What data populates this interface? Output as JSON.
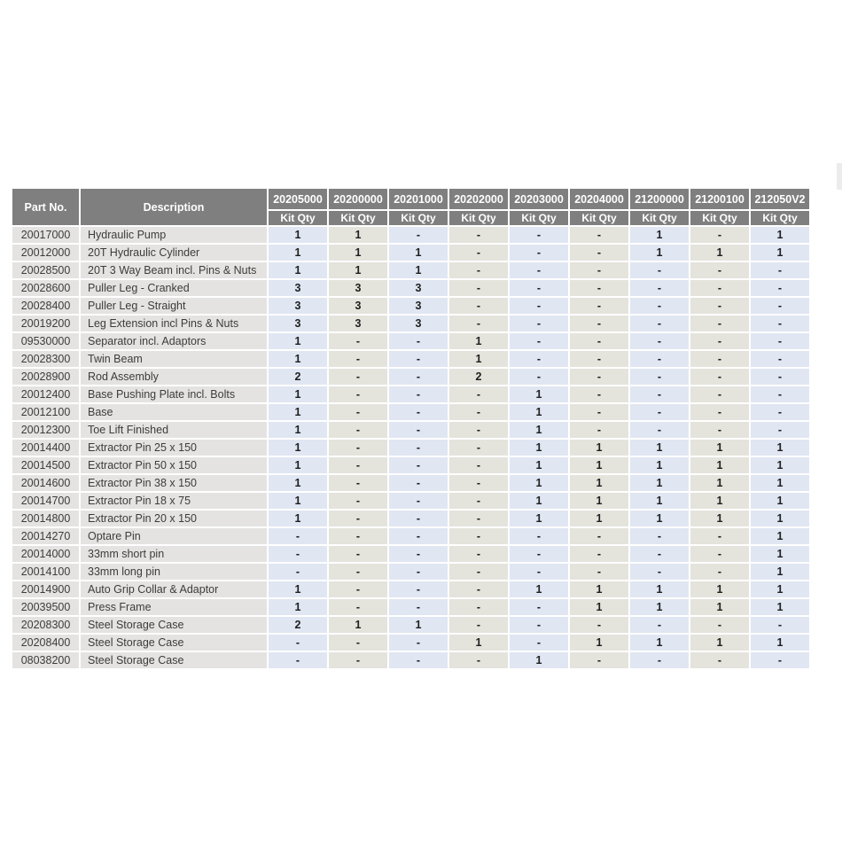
{
  "table": {
    "header": {
      "part_no_label": "Part No.",
      "description_label": "Description",
      "kit_qty_label": "Kit Qty",
      "kit_columns": [
        "20205000",
        "20200000",
        "20201000",
        "20202000",
        "20203000",
        "20204000",
        "21200000",
        "21200100",
        "212050V2"
      ]
    },
    "rows": [
      {
        "part_no": "20017000",
        "description": "Hydraulic Pump",
        "quantities": [
          "1",
          "1",
          "-",
          "-",
          "-",
          "-",
          "1",
          "-",
          "1"
        ]
      },
      {
        "part_no": "20012000",
        "description": "20T Hydraulic Cylinder",
        "quantities": [
          "1",
          "1",
          "1",
          "-",
          "-",
          "-",
          "1",
          "1",
          "1"
        ]
      },
      {
        "part_no": "20028500",
        "description": "20T 3 Way Beam incl. Pins & Nuts",
        "quantities": [
          "1",
          "1",
          "1",
          "-",
          "-",
          "-",
          "-",
          "-",
          "-"
        ]
      },
      {
        "part_no": "20028600",
        "description": "Puller Leg - Cranked",
        "quantities": [
          "3",
          "3",
          "3",
          "-",
          "-",
          "-",
          "-",
          "-",
          "-"
        ]
      },
      {
        "part_no": "20028400",
        "description": "Puller Leg - Straight",
        "quantities": [
          "3",
          "3",
          "3",
          "-",
          "-",
          "-",
          "-",
          "-",
          "-"
        ]
      },
      {
        "part_no": "20019200",
        "description": "Leg Extension incl Pins & Nuts",
        "quantities": [
          "3",
          "3",
          "3",
          "-",
          "-",
          "-",
          "-",
          "-",
          "-"
        ]
      },
      {
        "part_no": "09530000",
        "description": "Separator incl. Adaptors",
        "quantities": [
          "1",
          "-",
          "-",
          "1",
          "-",
          "-",
          "-",
          "-",
          "-"
        ]
      },
      {
        "part_no": "20028300",
        "description": "Twin Beam",
        "quantities": [
          "1",
          "-",
          "-",
          "1",
          "-",
          "-",
          "-",
          "-",
          "-"
        ]
      },
      {
        "part_no": "20028900",
        "description": "Rod Assembly",
        "quantities": [
          "2",
          "-",
          "-",
          "2",
          "-",
          "-",
          "-",
          "-",
          "-"
        ]
      },
      {
        "part_no": "20012400",
        "description": "Base Pushing Plate incl. Bolts",
        "quantities": [
          "1",
          "-",
          "-",
          "-",
          "1",
          "-",
          "-",
          "-",
          "-"
        ]
      },
      {
        "part_no": "20012100",
        "description": "Base",
        "quantities": [
          "1",
          "-",
          "-",
          "-",
          "1",
          "-",
          "-",
          "-",
          "-"
        ]
      },
      {
        "part_no": "20012300",
        "description": "Toe Lift Finished",
        "quantities": [
          "1",
          "-",
          "-",
          "-",
          "1",
          "-",
          "-",
          "-",
          "-"
        ]
      },
      {
        "part_no": "20014400",
        "description": "Extractor Pin 25 x 150",
        "quantities": [
          "1",
          "-",
          "-",
          "-",
          "1",
          "1",
          "1",
          "1",
          "1"
        ]
      },
      {
        "part_no": "20014500",
        "description": "Extractor Pin 50 x 150",
        "quantities": [
          "1",
          "-",
          "-",
          "-",
          "1",
          "1",
          "1",
          "1",
          "1"
        ]
      },
      {
        "part_no": "20014600",
        "description": "Extractor Pin 38 x 150",
        "quantities": [
          "1",
          "-",
          "-",
          "-",
          "1",
          "1",
          "1",
          "1",
          "1"
        ]
      },
      {
        "part_no": "20014700",
        "description": "Extractor Pin 18 x 75",
        "quantities": [
          "1",
          "-",
          "-",
          "-",
          "1",
          "1",
          "1",
          "1",
          "1"
        ]
      },
      {
        "part_no": "20014800",
        "description": "Extractor Pin 20 x 150",
        "quantities": [
          "1",
          "-",
          "-",
          "-",
          "1",
          "1",
          "1",
          "1",
          "1"
        ]
      },
      {
        "part_no": "20014270",
        "description": "Optare Pin",
        "quantities": [
          "-",
          "-",
          "-",
          "-",
          "-",
          "-",
          "-",
          "-",
          "1"
        ]
      },
      {
        "part_no": "20014000",
        "description": "33mm short pin",
        "quantities": [
          "-",
          "-",
          "-",
          "-",
          "-",
          "-",
          "-",
          "-",
          "1"
        ]
      },
      {
        "part_no": "20014100",
        "description": "33mm long pin",
        "quantities": [
          "-",
          "-",
          "-",
          "-",
          "-",
          "-",
          "-",
          "-",
          "1"
        ]
      },
      {
        "part_no": "20014900",
        "description": "Auto Grip Collar & Adaptor",
        "quantities": [
          "1",
          "-",
          "-",
          "-",
          "1",
          "1",
          "1",
          "1",
          "1"
        ]
      },
      {
        "part_no": "20039500",
        "description": "Press Frame",
        "quantities": [
          "1",
          "-",
          "-",
          "-",
          "-",
          "1",
          "1",
          "1",
          "1"
        ]
      },
      {
        "part_no": "20208300",
        "description": "Steel Storage Case",
        "quantities": [
          "2",
          "1",
          "1",
          "-",
          "-",
          "-",
          "-",
          "-",
          "-"
        ]
      },
      {
        "part_no": "20208400",
        "description": "Steel Storage Case",
        "quantities": [
          "-",
          "-",
          "-",
          "1",
          "-",
          "1",
          "1",
          "1",
          "1"
        ]
      },
      {
        "part_no": "08038200",
        "description": "Steel Storage Case",
        "quantities": [
          "-",
          "-",
          "-",
          "-",
          "1",
          "-",
          "-",
          "-",
          "-"
        ]
      }
    ],
    "colors": {
      "header_bg": "#7f7f7f",
      "header_text": "#ffffff",
      "label_cell_bg": "#e4e3e1",
      "qty_col_blue": "#e0e6f2",
      "qty_col_beige": "#e4e3dc",
      "label_text": "#3c3c3c",
      "qty_text": "#1f1f1f",
      "page_bg": "#ffffff"
    }
  }
}
